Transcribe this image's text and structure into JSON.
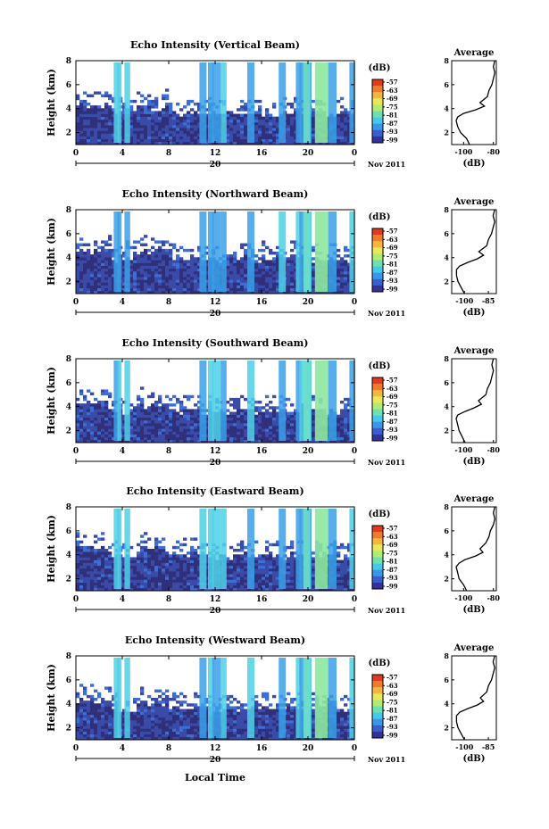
{
  "figure": {
    "xlabel": "Local Time",
    "height_ylabel": "Height (km)",
    "colorbar_unit": "(dB)",
    "colorbar_ticks": [
      "-57",
      "-63",
      "-69",
      "-75",
      "-81",
      "-87",
      "-93",
      "-99"
    ],
    "time_ticks": [
      "0",
      "4",
      "8",
      "12",
      "16",
      "20",
      "0"
    ],
    "date_label": "20",
    "date_suffix": "Nov 2011",
    "avg_title": "Average",
    "avg_xlabel": "(dB)"
  },
  "chart_data": [
    {
      "type": "heatmap",
      "title": "Echo Intensity (Vertical Beam)",
      "xlabel": "",
      "ylabel": "Height (km)",
      "x_range_hours": [
        0,
        24
      ],
      "ylim": [
        1,
        8
      ],
      "yticks": [
        "2",
        "4",
        "6",
        "8"
      ],
      "color_range_db": [
        -99,
        -57
      ],
      "average_profile": {
        "title": "Average",
        "xlabel": "(dB)",
        "xticks": [
          "-100",
          "-80"
        ],
        "xlim": [
          -108,
          -78
        ],
        "height_km": [
          1.0,
          1.5,
          2.0,
          2.5,
          3.0,
          3.3,
          3.6,
          3.9,
          4.2,
          4.5,
          5.0,
          5.5,
          6.0,
          6.5,
          7.0,
          7.5,
          8.0
        ],
        "db": [
          -96,
          -98,
          -102,
          -104,
          -105,
          -104,
          -100,
          -92,
          -86,
          -89,
          -84,
          -83,
          -81,
          -80,
          -79,
          -80,
          -79
        ]
      }
    },
    {
      "type": "heatmap",
      "title": "Echo Intensity (Northward Beam)",
      "xlabel": "",
      "ylabel": "Height (km)",
      "x_range_hours": [
        0,
        24
      ],
      "ylim": [
        1,
        8
      ],
      "yticks": [
        "2",
        "4",
        "6",
        "8"
      ],
      "color_range_db": [
        -99,
        -57
      ],
      "average_profile": {
        "title": "Average",
        "xlabel": "(dB)",
        "xticks": [
          "-100",
          "-85"
        ],
        "xlim": [
          -108,
          -80
        ],
        "height_km": [
          1.0,
          1.5,
          2.0,
          2.5,
          3.0,
          3.3,
          3.6,
          3.9,
          4.2,
          4.5,
          5.0,
          5.5,
          6.0,
          6.5,
          7.0,
          7.5,
          8.0
        ],
        "db": [
          -100,
          -102,
          -104,
          -105,
          -105,
          -103,
          -98,
          -92,
          -88,
          -91,
          -86,
          -85,
          -83,
          -82,
          -81,
          -82,
          -81
        ]
      }
    },
    {
      "type": "heatmap",
      "title": "Echo Intensity (Southward Beam)",
      "xlabel": "",
      "ylabel": "Height (km)",
      "x_range_hours": [
        0,
        24
      ],
      "ylim": [
        1,
        8
      ],
      "yticks": [
        "2",
        "4",
        "6",
        "8"
      ],
      "color_range_db": [
        -99,
        -57
      ],
      "average_profile": {
        "title": "Average",
        "xlabel": "(dB)",
        "xticks": [
          "-100",
          "-80"
        ],
        "xlim": [
          -108,
          -78
        ],
        "height_km": [
          1.0,
          1.5,
          2.0,
          2.5,
          3.0,
          3.3,
          3.6,
          3.9,
          4.2,
          4.5,
          5.0,
          5.5,
          6.0,
          6.5,
          7.0,
          7.5,
          8.0
        ],
        "db": [
          -99,
          -101,
          -103,
          -104,
          -105,
          -104,
          -99,
          -93,
          -88,
          -90,
          -85,
          -84,
          -82,
          -81,
          -80,
          -81,
          -80
        ]
      }
    },
    {
      "type": "heatmap",
      "title": "Echo Intensity (Eastward Beam)",
      "xlabel": "",
      "ylabel": "Height (km)",
      "x_range_hours": [
        0,
        24
      ],
      "ylim": [
        1,
        8
      ],
      "yticks": [
        "2",
        "4",
        "6",
        "8"
      ],
      "color_range_db": [
        -99,
        -57
      ],
      "average_profile": {
        "title": "Average",
        "xlabel": "(dB)",
        "xticks": [
          "-100",
          "-80"
        ],
        "xlim": [
          -108,
          -78
        ],
        "height_km": [
          1.0,
          1.5,
          2.0,
          2.5,
          3.0,
          3.3,
          3.6,
          3.9,
          4.2,
          4.5,
          5.0,
          5.5,
          6.0,
          6.5,
          7.0,
          7.5,
          8.0
        ],
        "db": [
          -98,
          -100,
          -103,
          -104,
          -105,
          -103,
          -99,
          -92,
          -87,
          -89,
          -85,
          -83,
          -82,
          -80,
          -79,
          -80,
          -79
        ]
      }
    },
    {
      "type": "heatmap",
      "title": "Echo Intensity (Westward Beam)",
      "xlabel": "Local Time",
      "ylabel": "Height (km)",
      "x_range_hours": [
        0,
        24
      ],
      "ylim": [
        1,
        8
      ],
      "yticks": [
        "2",
        "4",
        "6",
        "8"
      ],
      "color_range_db": [
        -99,
        -57
      ],
      "average_profile": {
        "title": "Average",
        "xlabel": "(dB)",
        "xticks": [
          "-100",
          "-85"
        ],
        "xlim": [
          -108,
          -80
        ],
        "height_km": [
          1.0,
          1.5,
          2.0,
          2.5,
          3.0,
          3.3,
          3.6,
          3.9,
          4.2,
          4.5,
          5.0,
          5.5,
          6.0,
          6.5,
          7.0,
          7.5,
          8.0
        ],
        "db": [
          -100,
          -102,
          -104,
          -105,
          -105,
          -103,
          -98,
          -92,
          -88,
          -90,
          -86,
          -85,
          -83,
          -82,
          -81,
          -82,
          -81
        ]
      }
    }
  ]
}
